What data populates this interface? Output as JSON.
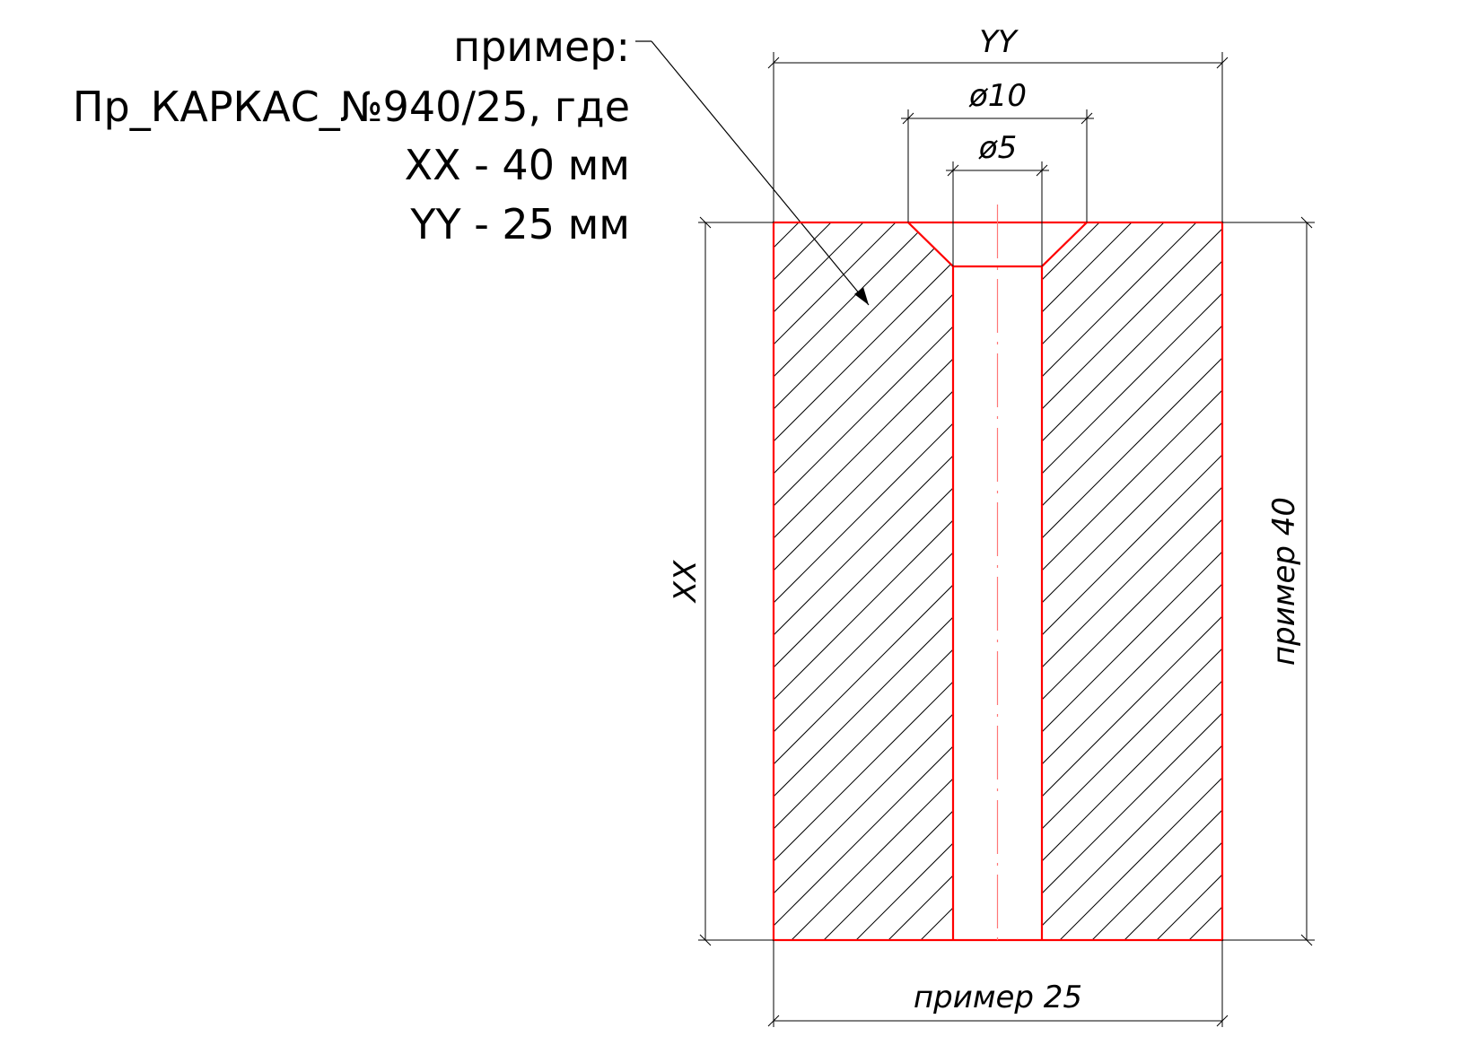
{
  "note": {
    "label": "пример:",
    "line_code": "Пр_КАРКАС_№940/25, где",
    "line_xx": "XX - 40 мм",
    "line_yy": "YY - 25 мм"
  },
  "dimensions": {
    "top_width": "YY",
    "counterbore_diameter": "ø10",
    "hole_diameter": "ø5",
    "left_height": "XX",
    "right_height": "пример 40",
    "bottom_width": "пример 25"
  },
  "colors": {
    "outline": "#ff0000",
    "centerline": "#ff7777",
    "dimension": "#000000",
    "hatch": "#000000"
  }
}
